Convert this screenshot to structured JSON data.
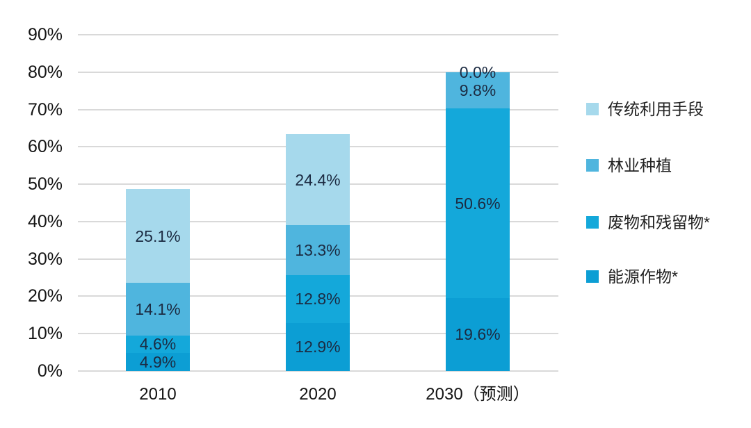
{
  "chart_data": {
    "type": "bar",
    "stacked": true,
    "title": "",
    "categories": [
      "2010",
      "2020",
      "2030（预测）"
    ],
    "series": [
      {
        "name": "传统利用手段",
        "color": "#a6d9ec",
        "values": [
          25.1,
          24.4,
          0.0
        ]
      },
      {
        "name": "林业种植",
        "color": "#4fb5de",
        "values": [
          14.1,
          13.3,
          9.8
        ]
      },
      {
        "name": "废物和残留物*",
        "color": "#14a8da",
        "values": [
          4.6,
          12.8,
          50.6
        ]
      },
      {
        "name": "能源作物*",
        "color": "#0c9ed4",
        "values": [
          4.9,
          12.9,
          19.6
        ]
      }
    ],
    "stack_totals": [
      48.7,
      63.4,
      80.0
    ],
    "y_ticks": [
      "0%",
      "10%",
      "20%",
      "30%",
      "40%",
      "50%",
      "60%",
      "70%",
      "80%",
      "90%"
    ],
    "ylim": [
      0,
      90
    ],
    "xlabel": "",
    "ylabel": "",
    "grid": true,
    "legend_position": "right",
    "value_label_suffix": "%",
    "colors": {
      "grid": "#d9d9d9",
      "axis_text": "#141414",
      "data_label": "#1c2b42",
      "legend_text": "#222222",
      "background": "#ffffff"
    }
  }
}
